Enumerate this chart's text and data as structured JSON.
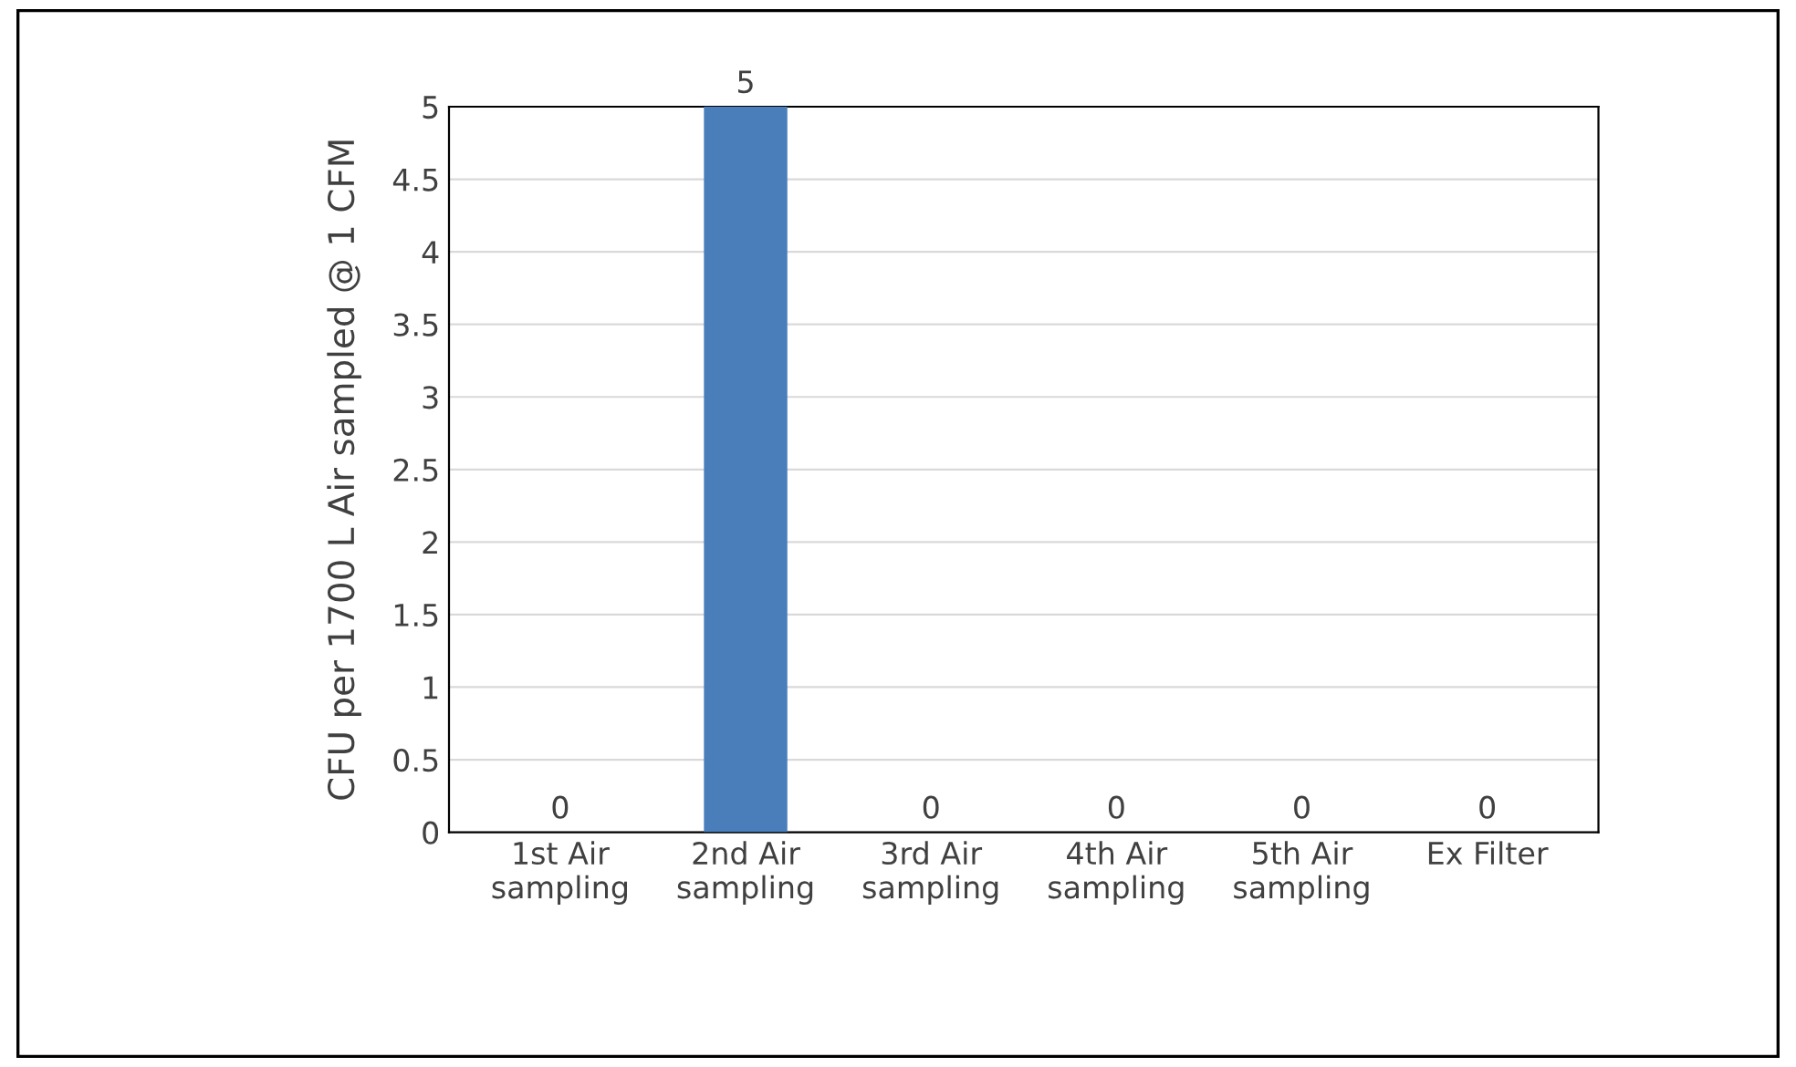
{
  "chart_data": {
    "type": "bar",
    "ylabel": "CFU per 1700 L Air sampled @ 1 CFM",
    "categories": [
      "1st Air\nsampling",
      "2nd Air\nsampling",
      "3rd Air\nsampling",
      "4th Air\nsampling",
      "5th Air\nsampling",
      "Ex Filter"
    ],
    "values": [
      0,
      5,
      0,
      0,
      0,
      0
    ],
    "color": "#4a7ebb",
    "ylim": [
      0,
      5
    ],
    "yticks": [
      0,
      0.5,
      1,
      1.5,
      2,
      2.5,
      3,
      3.5,
      4,
      4.5,
      5
    ],
    "grid": "y",
    "data_labels": true
  }
}
